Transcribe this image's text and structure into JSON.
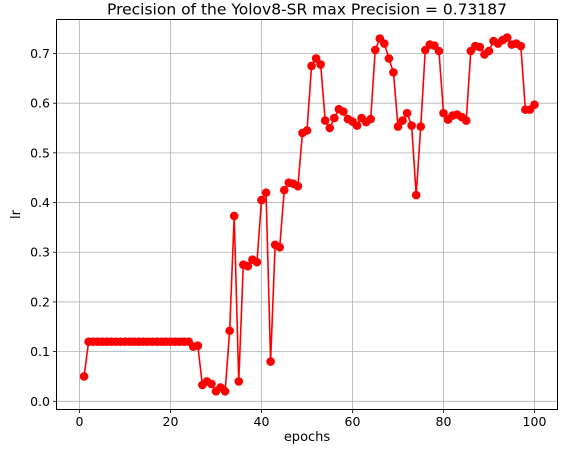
{
  "chart_data": {
    "type": "line",
    "title": "Precision of the Yolov8-SR max Precision = 0.73187",
    "xlabel": "epochs",
    "ylabel": "lr",
    "xlim": [
      -4.95,
      104.95
    ],
    "ylim": [
      -0.0155,
      0.7674
    ],
    "xticks": [
      0,
      20,
      40,
      60,
      80,
      100
    ],
    "yticks": [
      0.0,
      0.1,
      0.2,
      0.3,
      0.4,
      0.5,
      0.6,
      0.7
    ],
    "xtick_labels": [
      "0",
      "20",
      "40",
      "60",
      "80",
      "100"
    ],
    "ytick_labels": [
      "0.0",
      "0.1",
      "0.2",
      "0.3",
      "0.4",
      "0.5",
      "0.6",
      "0.7"
    ],
    "grid": true,
    "line_color": "#ff0000",
    "marker": "circle",
    "series": [
      {
        "x": [
          1,
          2,
          3,
          4,
          5,
          6,
          7,
          8,
          9,
          10,
          11,
          12,
          13,
          14,
          15,
          16,
          17,
          18,
          19,
          20,
          21,
          22,
          23,
          24,
          25,
          26,
          27,
          28,
          29,
          30,
          31,
          32,
          33,
          34,
          35,
          36,
          37,
          38,
          39,
          40,
          41,
          42,
          43,
          44,
          45,
          46,
          47,
          48,
          49,
          50,
          51,
          52,
          53,
          54,
          55,
          56,
          57,
          58,
          59,
          60,
          61,
          62,
          63,
          64,
          65,
          66,
          67,
          68,
          69,
          70,
          71,
          72,
          73,
          74,
          75,
          76,
          77,
          78,
          79,
          80,
          81,
          82,
          83,
          84,
          85,
          86,
          87,
          88,
          89,
          90,
          91,
          92,
          93,
          94,
          95,
          96,
          97,
          98,
          99,
          100
        ],
        "y": [
          0.05,
          0.12,
          0.12,
          0.12,
          0.12,
          0.12,
          0.12,
          0.12,
          0.12,
          0.12,
          0.12,
          0.12,
          0.12,
          0.12,
          0.12,
          0.12,
          0.12,
          0.12,
          0.12,
          0.12,
          0.12,
          0.12,
          0.12,
          0.12,
          0.11,
          0.112,
          0.033,
          0.04,
          0.035,
          0.02,
          0.028,
          0.02,
          0.142,
          0.373,
          0.04,
          0.275,
          0.272,
          0.285,
          0.28,
          0.405,
          0.42,
          0.08,
          0.315,
          0.31,
          0.425,
          0.44,
          0.438,
          0.433,
          0.54,
          0.545,
          0.675,
          0.69,
          0.678,
          0.565,
          0.55,
          0.57,
          0.588,
          0.583,
          0.568,
          0.563,
          0.555,
          0.57,
          0.562,
          0.568,
          0.707,
          0.73,
          0.72,
          0.69,
          0.662,
          0.553,
          0.565,
          0.58,
          0.555,
          0.415,
          0.553,
          0.707,
          0.718,
          0.716,
          0.705,
          0.58,
          0.567,
          0.575,
          0.577,
          0.572,
          0.565,
          0.705,
          0.715,
          0.713,
          0.698,
          0.705,
          0.725,
          0.72,
          0.727,
          0.732,
          0.718,
          0.72,
          0.715,
          0.587,
          0.587,
          0.597
        ]
      }
    ]
  }
}
